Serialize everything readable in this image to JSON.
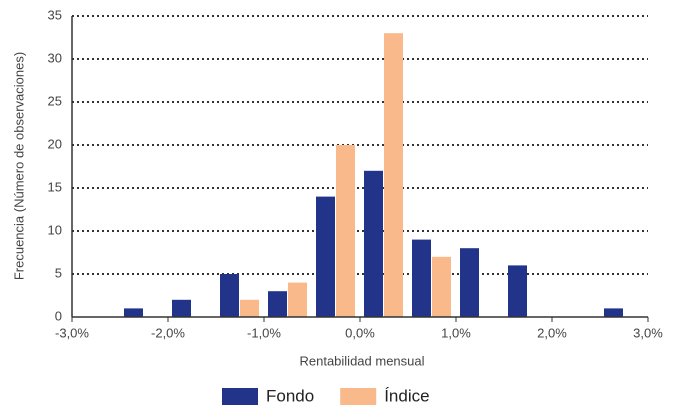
{
  "chart_data": {
    "type": "histogram",
    "xlabel": "Rentabilidad mensual",
    "ylabel": "Frecuencia (Número de observaciones)",
    "bins": [
      -3.0,
      -2.5,
      -2.0,
      -1.5,
      -1.0,
      -0.5,
      0.0,
      0.5,
      1.0,
      1.5,
      2.0,
      2.5,
      3.0
    ],
    "series": [
      {
        "name": "Fondo",
        "color": "#22338a",
        "values": [
          0,
          1,
          2,
          5,
          3,
          14,
          17,
          9,
          8,
          6,
          0,
          1
        ]
      },
      {
        "name": "Índice",
        "color": "#f9b98b",
        "values": [
          0,
          0,
          0,
          2,
          4,
          20,
          33,
          7,
          0,
          0,
          0,
          0
        ]
      }
    ],
    "xlim": [
      -3.0,
      3.0
    ],
    "xticks": [
      {
        "value": -3,
        "label": "-3,0%"
      },
      {
        "value": -2,
        "label": "-2,0%"
      },
      {
        "value": -1,
        "label": "-1,0%"
      },
      {
        "value": 0,
        "label": "0,0%"
      },
      {
        "value": 1,
        "label": "1,0%"
      },
      {
        "value": 2,
        "label": "2,0%"
      },
      {
        "value": 3,
        "label": "3,0%"
      }
    ],
    "ylim": [
      0,
      35
    ],
    "yticks": [
      0,
      5,
      10,
      15,
      20,
      25,
      30,
      35
    ],
    "grid": true,
    "legend": "bottom"
  }
}
